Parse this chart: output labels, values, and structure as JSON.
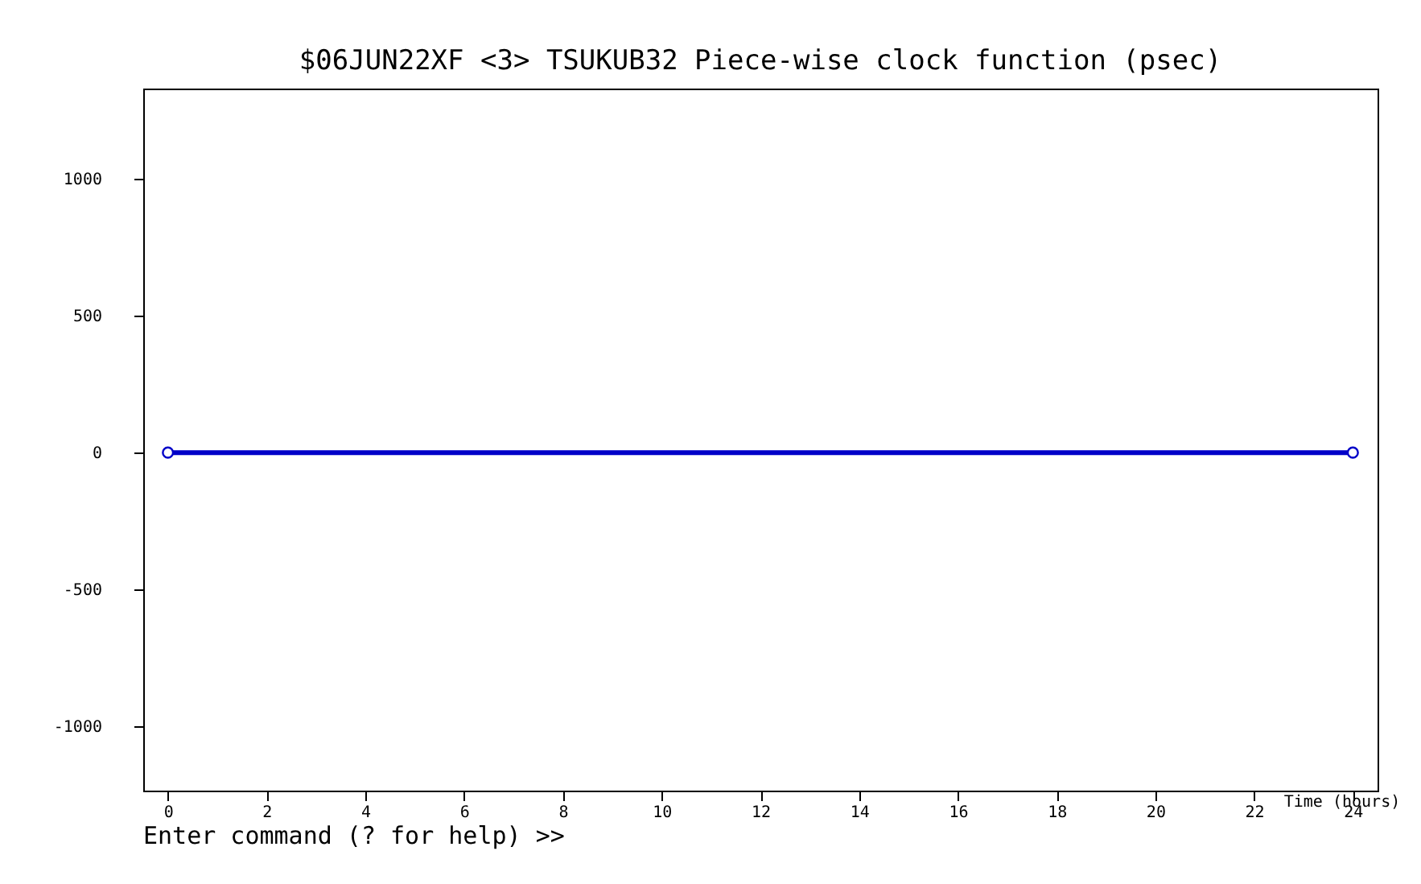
{
  "chart_data": {
    "type": "line",
    "title": "$06JUN22XF <3>  TSUKUB32  Piece-wise clock function (psec)",
    "xlabel": "Time (hours)",
    "x": [
      0,
      24
    ],
    "series": [
      {
        "color": "#0000c8",
        "values": [
          0,
          0
        ]
      }
    ],
    "xlim": [
      -0.5,
      24.5
    ],
    "xticks": [
      0,
      2,
      4,
      6,
      8,
      10,
      12,
      14,
      16,
      18,
      20,
      22,
      24
    ],
    "ylim": [
      -1235,
      1330
    ],
    "yticks": [
      -1000,
      -500,
      0,
      500,
      1000
    ],
    "marker": "circle",
    "line_style": "solid",
    "grid": false,
    "annotations": [
      "Enter command (? for help) >>"
    ]
  }
}
